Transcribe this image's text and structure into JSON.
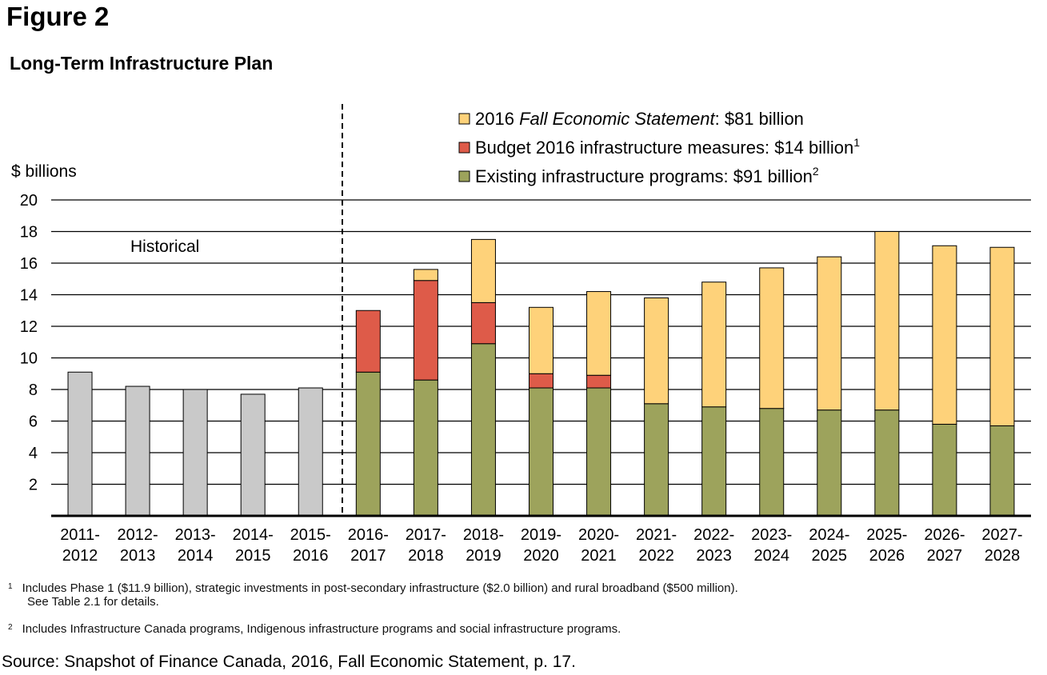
{
  "figure_label": "Figure 2",
  "footnotes": {
    "note1_marker": "1",
    "note1_line1": "Includes Phase 1 ($11.9 billion), strategic investments in post-secondary infrastructure ($2.0 billion) and rural broadband ($500 million).",
    "note1_line2": "See Table 2.1 for details.",
    "note2_marker": "2",
    "note2_line1": "Includes Infrastructure Canada programs, Indigenous infrastructure programs and social infrastructure programs."
  },
  "source": "Source: Snapshot of Finance Canada, 2016, Fall Economic Statement, p. 17.",
  "chart_data": {
    "type": "bar",
    "stacked": true,
    "title": "Long-Term Infrastructure Plan",
    "ylabel": "$ billions",
    "xlabel": "",
    "ylim": [
      0,
      20
    ],
    "yticks": [
      2,
      4,
      6,
      8,
      10,
      12,
      14,
      16,
      18,
      20
    ],
    "grid": true,
    "legend_position": "top-right",
    "annotation": "Historical",
    "categories": [
      [
        "2011-",
        "2012"
      ],
      [
        "2012-",
        "2013"
      ],
      [
        "2013-",
        "2014"
      ],
      [
        "2014-",
        "2015"
      ],
      [
        "2015-",
        "2016"
      ],
      [
        "2016-",
        "2017"
      ],
      [
        "2017-",
        "2018"
      ],
      [
        "2018-",
        "2019"
      ],
      [
        "2019-",
        "2020"
      ],
      [
        "2020-",
        "2021"
      ],
      [
        "2021-",
        "2022"
      ],
      [
        "2022-",
        "2023"
      ],
      [
        "2023-",
        "2024"
      ],
      [
        "2024-",
        "2025"
      ],
      [
        "2025-",
        "2026"
      ],
      [
        "2026-",
        "2027"
      ],
      [
        "2027-",
        "2028"
      ]
    ],
    "historical": {
      "color": "#c9c9c9",
      "values": [
        9.1,
        8.2,
        8.0,
        7.7,
        8.1,
        null,
        null,
        null,
        null,
        null,
        null,
        null,
        null,
        null,
        null,
        null,
        null
      ]
    },
    "series": [
      {
        "name": "Existing infrastructure programs: $91 billion",
        "legend_prefix": "Existing infrastructure programs: $91 billion",
        "legend_italic": "",
        "legend_suffix": "",
        "legend_sup": "2",
        "color": "#9da35c",
        "values": [
          null,
          null,
          null,
          null,
          null,
          9.1,
          8.6,
          10.9,
          8.1,
          8.1,
          7.1,
          6.9,
          6.8,
          6.7,
          6.7,
          5.8,
          5.7
        ]
      },
      {
        "name": "Budget 2016 infrastructure measures: $14 billion",
        "legend_prefix": "Budget 2016 infrastructure measures: $14 billion",
        "legend_italic": "",
        "legend_suffix": "",
        "legend_sup": "1",
        "color": "#de5b49",
        "values": [
          null,
          null,
          null,
          null,
          null,
          3.9,
          6.3,
          2.6,
          0.9,
          0.8,
          0,
          0,
          0,
          0,
          0,
          0,
          0
        ]
      },
      {
        "name": "2016 Fall Economic Statement: $81 billion",
        "legend_prefix": "2016 ",
        "legend_italic": "Fall Economic Statement",
        "legend_suffix": ": $81 billion",
        "legend_sup": "",
        "color": "#fed27a",
        "values": [
          null,
          null,
          null,
          null,
          null,
          0,
          0.7,
          4.0,
          4.2,
          5.3,
          6.7,
          7.9,
          8.9,
          9.7,
          11.3,
          11.3,
          11.3
        ]
      }
    ]
  }
}
